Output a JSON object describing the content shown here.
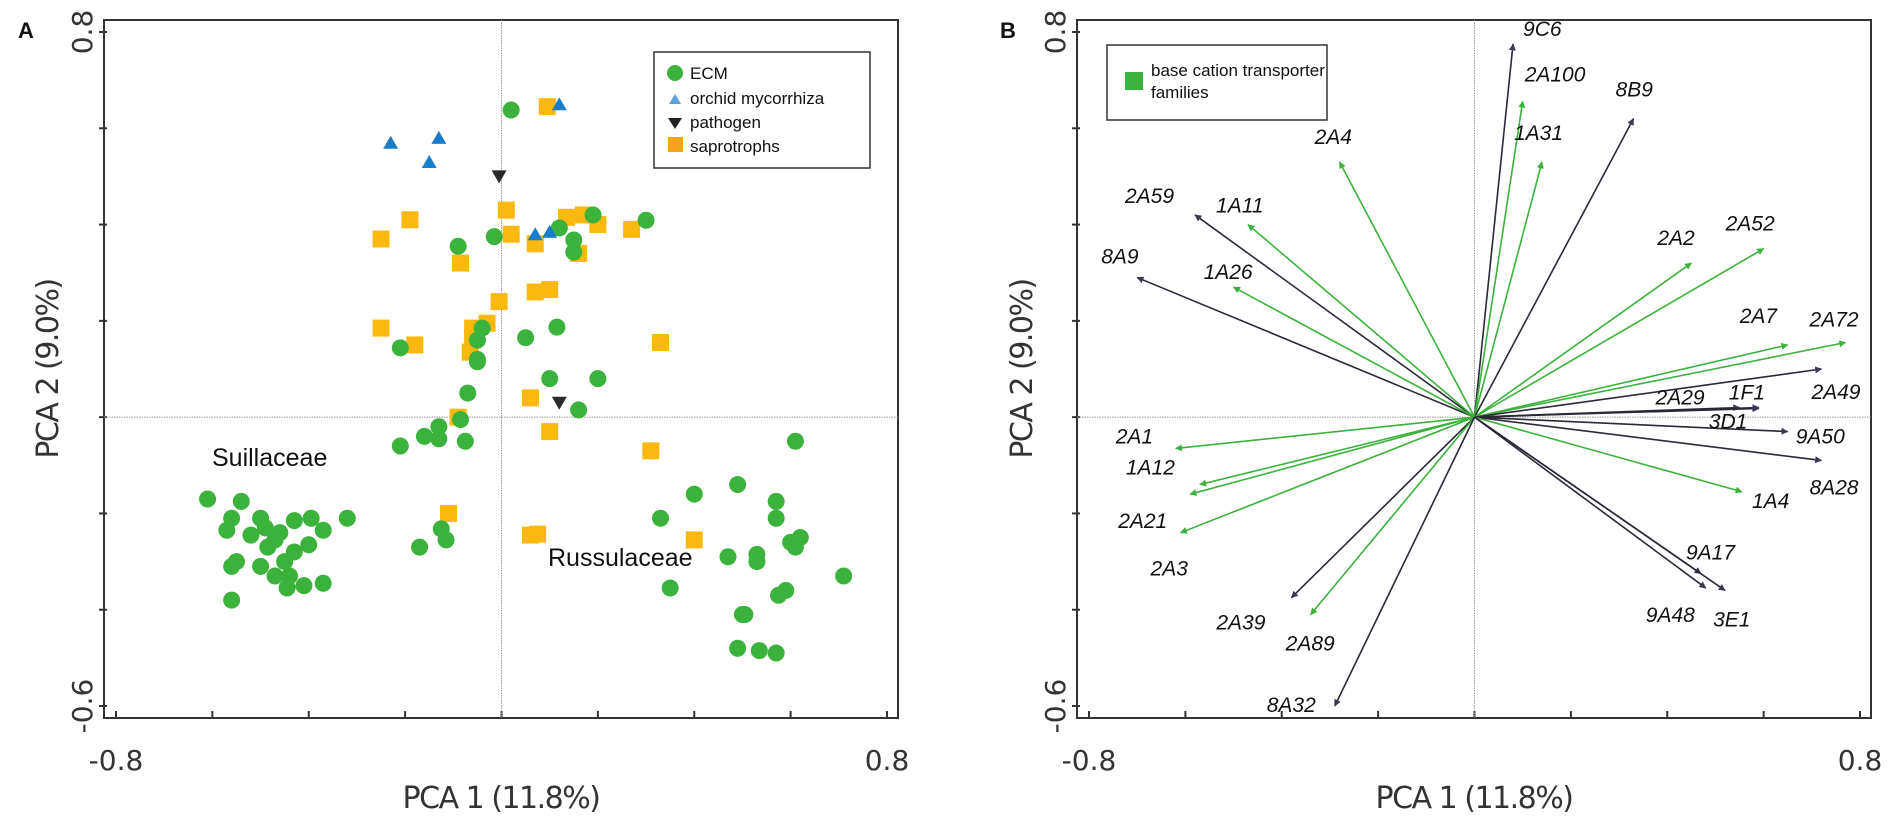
{
  "chart_data": [
    {
      "panel": "A",
      "type": "scatter",
      "xlabel": "PCA 1 (11.8%)",
      "ylabel": "PCA 2 (9.0%)",
      "xlim": [
        -0.8,
        0.8
      ],
      "ylim": [
        -0.6,
        0.8
      ],
      "x_tick_labels": [
        "-0.8",
        "0.8"
      ],
      "y_tick_labels": [
        "0.8",
        "-0.6"
      ],
      "x_ticks": [
        -0.8,
        -0.6,
        -0.4,
        -0.2,
        0,
        0.2,
        0.4,
        0.6,
        0.8
      ],
      "y_ticks": [
        0.8,
        0.6,
        0.4,
        0.2,
        0,
        -0.2,
        -0.4,
        -0.6
      ],
      "reference_lines": {
        "x": 0,
        "y": 0
      },
      "legend": {
        "position": "top-right",
        "entries": [
          {
            "label": "ECM",
            "marker": "circle",
            "color": "#3bb23b"
          },
          {
            "label": "orchid mycorrhiza",
            "marker": "triangle-up",
            "color": "#1a7dc9"
          },
          {
            "label": "pathogen",
            "marker": "triangle-down",
            "color": "#2a2a2a"
          },
          {
            "label": "saprotrophs",
            "marker": "square",
            "color": "#fbb80f"
          }
        ]
      },
      "annotations": [
        {
          "text": "Suillaceae",
          "x": -0.58,
          "y": -0.09
        },
        {
          "text": "Russulaceae",
          "x": 0.1,
          "y": -0.33
        }
      ],
      "series": [
        {
          "name": "ECM",
          "marker": "circle",
          "color": "#3bb23b",
          "points": [
            [
              0.02,
              0.638
            ],
            [
              0.19,
              0.42
            ],
            [
              0.3,
              0.409
            ],
            [
              0.12,
              0.393
            ],
            [
              0.15,
              0.368
            ],
            [
              0.15,
              0.343
            ],
            [
              -0.015,
              0.375
            ],
            [
              -0.09,
              0.355
            ],
            [
              -0.04,
              0.185
            ],
            [
              -0.05,
              0.16
            ],
            [
              -0.05,
              0.115
            ],
            [
              -0.05,
              0.12
            ],
            [
              0.05,
              0.165
            ],
            [
              0.115,
              0.187
            ],
            [
              0.2,
              0.08
            ],
            [
              0.1,
              0.08
            ],
            [
              0.16,
              0.015
            ],
            [
              -0.21,
              0.144
            ],
            [
              -0.07,
              0.05
            ],
            [
              -0.085,
              -0.005
            ],
            [
              -0.21,
              -0.06
            ],
            [
              -0.13,
              -0.02
            ],
            [
              -0.16,
              -0.04
            ],
            [
              -0.13,
              -0.045
            ],
            [
              -0.075,
              -0.05
            ],
            [
              -0.61,
              -0.17
            ],
            [
              -0.54,
              -0.175
            ],
            [
              -0.56,
              -0.21
            ],
            [
              -0.5,
              -0.21
            ],
            [
              -0.49,
              -0.23
            ],
            [
              -0.43,
              -0.215
            ],
            [
              -0.395,
              -0.21
            ],
            [
              -0.37,
              -0.235
            ],
            [
              -0.57,
              -0.235
            ],
            [
              -0.52,
              -0.245
            ],
            [
              -0.47,
              -0.255
            ],
            [
              -0.46,
              -0.24
            ],
            [
              -0.32,
              -0.21
            ],
            [
              -0.4,
              -0.265
            ],
            [
              -0.485,
              -0.27
            ],
            [
              -0.43,
              -0.28
            ],
            [
              -0.55,
              -0.3
            ],
            [
              -0.56,
              -0.31
            ],
            [
              -0.5,
              -0.31
            ],
            [
              -0.45,
              -0.3
            ],
            [
              -0.47,
              -0.33
            ],
            [
              -0.44,
              -0.33
            ],
            [
              -0.445,
              -0.355
            ],
            [
              -0.41,
              -0.35
            ],
            [
              -0.37,
              -0.345
            ],
            [
              -0.56,
              -0.38
            ],
            [
              -0.125,
              -0.232
            ],
            [
              -0.115,
              -0.255
            ],
            [
              -0.17,
              -0.27
            ],
            [
              0.61,
              -0.05
            ],
            [
              0.49,
              -0.14
            ],
            [
              0.4,
              -0.16
            ],
            [
              0.57,
              -0.175
            ],
            [
              0.57,
              -0.21
            ],
            [
              0.33,
              -0.21
            ],
            [
              0.61,
              -0.27
            ],
            [
              0.6,
              -0.26
            ],
            [
              0.47,
              -0.29
            ],
            [
              0.53,
              -0.285
            ],
            [
              0.53,
              -0.3
            ],
            [
              0.62,
              -0.25
            ],
            [
              0.71,
              -0.33
            ],
            [
              0.35,
              -0.355
            ],
            [
              0.59,
              -0.36
            ],
            [
              0.575,
              -0.37
            ],
            [
              0.5,
              -0.41
            ],
            [
              0.505,
              -0.41
            ],
            [
              0.49,
              -0.48
            ],
            [
              0.535,
              -0.485
            ],
            [
              0.57,
              -0.49
            ]
          ]
        },
        {
          "name": "orchid mycorrhiza",
          "marker": "triangle-up",
          "color": "#1a7dc9",
          "points": [
            [
              -0.23,
              0.57
            ],
            [
              -0.13,
              0.58
            ],
            [
              -0.15,
              0.53
            ],
            [
              0.12,
              0.65
            ],
            [
              0.07,
              0.38
            ],
            [
              0.1,
              0.385
            ]
          ]
        },
        {
          "name": "pathogen",
          "marker": "triangle-down",
          "color": "#2a2a2a",
          "points": [
            [
              -0.005,
              0.5
            ],
            [
              0.12,
              0.03
            ]
          ]
        },
        {
          "name": "saprotrophs",
          "marker": "square",
          "color": "#fbb80f",
          "points": [
            [
              0.095,
              0.645
            ],
            [
              0.01,
              0.43
            ],
            [
              -0.19,
              0.41
            ],
            [
              -0.25,
              0.37
            ],
            [
              0.135,
              0.415
            ],
            [
              0.17,
              0.42
            ],
            [
              0.2,
              0.4
            ],
            [
              0.27,
              0.39
            ],
            [
              0.02,
              0.38
            ],
            [
              0.07,
              0.36
            ],
            [
              0.16,
              0.34
            ],
            [
              -0.085,
              0.32
            ],
            [
              0.07,
              0.26
            ],
            [
              0.1,
              0.265
            ],
            [
              -0.005,
              0.24
            ],
            [
              -0.03,
              0.195
            ],
            [
              -0.25,
              0.185
            ],
            [
              -0.18,
              0.15
            ],
            [
              -0.06,
              0.185
            ],
            [
              -0.06,
              0.165
            ],
            [
              -0.065,
              0.135
            ],
            [
              0.33,
              0.155
            ],
            [
              0.06,
              0.04
            ],
            [
              -0.09,
              0.0
            ],
            [
              0.1,
              -0.03
            ],
            [
              0.31,
              -0.07
            ],
            [
              -0.11,
              -0.2
            ],
            [
              0.06,
              -0.245
            ],
            [
              0.075,
              -0.243
            ],
            [
              0.4,
              -0.255
            ]
          ]
        }
      ]
    },
    {
      "panel": "B",
      "type": "biplot-arrows",
      "xlabel": "PCA 1 (11.8%)",
      "ylabel": "PCA 2 (9.0%)",
      "xlim": [
        -0.8,
        0.8
      ],
      "ylim": [
        -0.6,
        0.8
      ],
      "x_tick_labels": [
        "-0.8",
        "0.8"
      ],
      "y_tick_labels": [
        "0.8",
        "-0.6"
      ],
      "x_ticks": [
        -0.8,
        -0.6,
        -0.4,
        -0.2,
        0,
        0.2,
        0.4,
        0.6,
        0.8
      ],
      "y_ticks": [
        0.8,
        0.6,
        0.4,
        0.2,
        0,
        -0.2,
        -0.4,
        -0.6
      ],
      "reference_lines": {
        "x": 0,
        "y": 0
      },
      "legend": {
        "position": "top-left",
        "entries": [
          {
            "label": "base cation transporter families",
            "marker": "square",
            "color": "#3bb23b"
          }
        ]
      },
      "colors": {
        "highlight": "#3bb23b",
        "other": "#2b2838"
      },
      "arrows": [
        {
          "label": "9C6",
          "x": 0.08,
          "y": 0.775,
          "highlight": false
        },
        {
          "label": "2A100",
          "x": 0.1,
          "y": 0.656,
          "highlight": true
        },
        {
          "label": "1A31",
          "x": 0.14,
          "y": 0.53,
          "highlight": true
        },
        {
          "label": "8B9",
          "x": 0.33,
          "y": 0.62,
          "highlight": false
        },
        {
          "label": "2A4",
          "x": -0.28,
          "y": 0.53,
          "highlight": true
        },
        {
          "label": "2A59",
          "x": -0.58,
          "y": 0.42,
          "highlight": false
        },
        {
          "label": "1A11",
          "x": -0.47,
          "y": 0.4,
          "highlight": true
        },
        {
          "label": "8A9",
          "x": -0.7,
          "y": 0.29,
          "highlight": false
        },
        {
          "label": "1A26",
          "x": -0.5,
          "y": 0.27,
          "highlight": true
        },
        {
          "label": "2A2",
          "x": 0.45,
          "y": 0.32,
          "highlight": true
        },
        {
          "label": "2A52",
          "x": 0.6,
          "y": 0.35,
          "highlight": true
        },
        {
          "label": "2A7",
          "x": 0.65,
          "y": 0.15,
          "highlight": true
        },
        {
          "label": "2A72",
          "x": 0.77,
          "y": 0.155,
          "highlight": true
        },
        {
          "label": "2A49",
          "x": 0.72,
          "y": 0.1,
          "highlight": false
        },
        {
          "label": "2A29",
          "x": 0.55,
          "y": 0.02,
          "highlight": false
        },
        {
          "label": "1F1",
          "x": 0.59,
          "y": 0.02,
          "highlight": false
        },
        {
          "label": "3D1",
          "x": 0.59,
          "y": 0.018,
          "highlight": false
        },
        {
          "label": "9A50",
          "x": 0.65,
          "y": -0.03,
          "highlight": false
        },
        {
          "label": "8A28",
          "x": 0.72,
          "y": -0.09,
          "highlight": false
        },
        {
          "label": "1A4",
          "x": 0.555,
          "y": -0.155,
          "highlight": true
        },
        {
          "label": "9A17",
          "x": 0.47,
          "y": -0.325,
          "highlight": false
        },
        {
          "label": "9A48",
          "x": 0.48,
          "y": -0.355,
          "highlight": false
        },
        {
          "label": "3E1",
          "x": 0.52,
          "y": -0.36,
          "highlight": false
        },
        {
          "label": "2A1",
          "x": -0.62,
          "y": -0.065,
          "highlight": true
        },
        {
          "label": "1A12",
          "x": -0.57,
          "y": -0.14,
          "highlight": true
        },
        {
          "label": "2A21",
          "x": -0.59,
          "y": -0.16,
          "highlight": true
        },
        {
          "label": "2A3",
          "x": -0.61,
          "y": -0.24,
          "highlight": true
        },
        {
          "label": "2A39",
          "x": -0.38,
          "y": -0.375,
          "highlight": false
        },
        {
          "label": "2A89",
          "x": -0.34,
          "y": -0.41,
          "highlight": true
        },
        {
          "label": "8A32",
          "x": -0.29,
          "y": -0.6,
          "highlight": false
        }
      ]
    }
  ],
  "panels": {
    "a": {
      "letter": "A",
      "xlabel": "PCA 1 (11.8%)",
      "ylabel": "PCA 2 (9.0%)",
      "x_min_label": "-0.8",
      "x_max_label": "0.8",
      "y_max_label": "0.8",
      "y_min_label": "-0.6",
      "legend": [
        "ECM",
        "orchid mycorrhiza",
        "pathogen",
        "saprotrophs"
      ],
      "annotations": [
        "Suillaceae",
        "Russulaceae"
      ]
    },
    "b": {
      "letter": "B",
      "xlabel": "PCA 1 (11.8%)",
      "ylabel": "PCA 2 (9.0%)",
      "x_min_label": "-0.8",
      "x_max_label": "0.8",
      "y_max_label": "0.8",
      "y_min_label": "-0.6",
      "legend_line1": "base cation transporter",
      "legend_line2": "families"
    }
  }
}
